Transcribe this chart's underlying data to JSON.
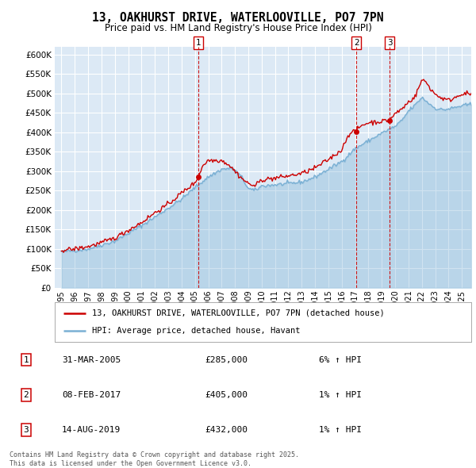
{
  "title": "13, OAKHURST DRIVE, WATERLOOVILLE, PO7 7PN",
  "subtitle": "Price paid vs. HM Land Registry's House Price Index (HPI)",
  "legend_line1": "13, OAKHURST DRIVE, WATERLOOVILLE, PO7 7PN (detached house)",
  "legend_line2": "HPI: Average price, detached house, Havant",
  "footnote": "Contains HM Land Registry data © Crown copyright and database right 2025.\nThis data is licensed under the Open Government Licence v3.0.",
  "transactions": [
    {
      "num": 1,
      "date": "31-MAR-2005",
      "price": 285000,
      "hpi_pct": "6% ↑ HPI",
      "x_year": 2005.25
    },
    {
      "num": 2,
      "date": "08-FEB-2017",
      "price": 405000,
      "hpi_pct": "1% ↑ HPI",
      "x_year": 2017.1
    },
    {
      "num": 3,
      "date": "14-AUG-2019",
      "price": 432000,
      "hpi_pct": "1% ↑ HPI",
      "x_year": 2019.6
    }
  ],
  "ylim": [
    0,
    620000
  ],
  "xlim_start": 1994.5,
  "xlim_end": 2025.7,
  "bg_color": "#dce9f5",
  "red_line_color": "#cc0000",
  "blue_line_color": "#7ab0d4",
  "grid_color": "#ffffff",
  "dot_color": "#cc0000",
  "yticks": [
    0,
    50000,
    100000,
    150000,
    200000,
    250000,
    300000,
    350000,
    400000,
    450000,
    500000,
    550000,
    600000
  ],
  "xtick_start": 1995,
  "xtick_end": 2026
}
